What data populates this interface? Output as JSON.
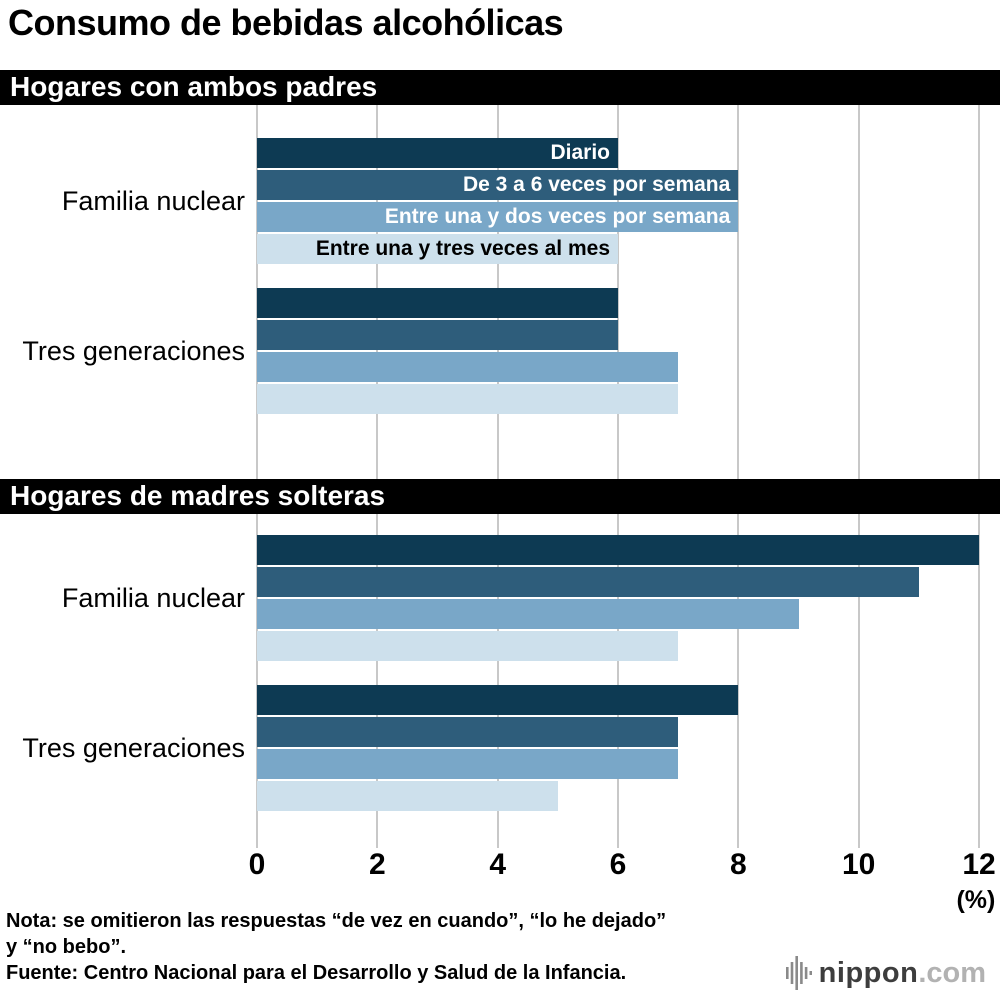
{
  "title": "Consumo de bebidas alcohólicas",
  "chart_data": {
    "type": "bar",
    "orientation": "horizontal",
    "xlim": [
      0,
      12
    ],
    "x_ticks": [
      0,
      2,
      4,
      6,
      8,
      10,
      12
    ],
    "x_unit_label": "(%)",
    "grid": true,
    "gridline_color": "#c8c8c8",
    "series_labels": [
      "Diario",
      "De 3 a 6 veces por semana",
      "Entre una y dos veces por semana",
      "Entre una y tres veces al mes"
    ],
    "series_colors": [
      "#0d3a53",
      "#2e5d7b",
      "#79a7c8",
      "#cde0ec"
    ],
    "series_label_colors": [
      "#ffffff",
      "#ffffff",
      "#ffffff",
      "#000000"
    ],
    "sections": [
      {
        "header": "Hogares con ambos padres",
        "groups": [
          {
            "label": "Familia nuclear",
            "values": [
              6,
              8,
              8,
              6
            ]
          },
          {
            "label": "Tres generaciones",
            "values": [
              6,
              6,
              7,
              7
            ]
          }
        ]
      },
      {
        "header": "Hogares de madres solteras",
        "groups": [
          {
            "label": "Familia nuclear",
            "values": [
              12,
              11,
              9,
              7
            ]
          },
          {
            "label": "Tres generaciones",
            "values": [
              8,
              7,
              7,
              5
            ]
          }
        ]
      }
    ]
  },
  "notes": {
    "line1": "Nota: se omitieron las respuestas “de vez en cuando”, “lo he dejado”",
    "line2": "y “no bebo”.",
    "source": "Fuente: Centro Nacional para el Desarrollo y Salud de la Infancia."
  },
  "logo": {
    "brand": "nippon",
    "tld": ".com"
  }
}
